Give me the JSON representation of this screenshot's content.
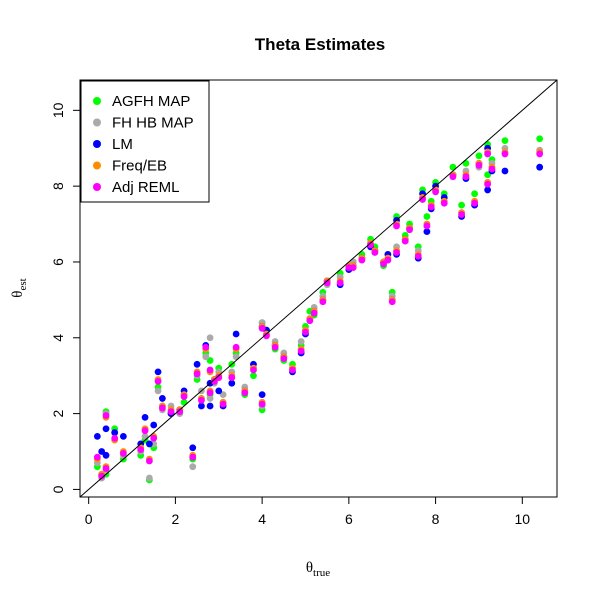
{
  "chart_data": {
    "type": "scatter",
    "title": "Theta Estimates",
    "xlabel": "θtrue",
    "xlabel_main": "θ",
    "xlabel_sub": "true",
    "ylabel": "θest",
    "ylabel_main": "θ",
    "ylabel_sub": "est",
    "xlim": [
      -0.2,
      10.8
    ],
    "ylim": [
      -0.2,
      10.8
    ],
    "xticks": [
      0,
      2,
      4,
      6,
      8,
      10
    ],
    "yticks": [
      0,
      2,
      4,
      6,
      8,
      10
    ],
    "reference_line": "y = x",
    "grid": false,
    "legend_position": "top-left",
    "x": [
      0.2,
      0.3,
      0.4,
      0.4,
      0.6,
      0.8,
      1.2,
      1.3,
      1.4,
      1.5,
      1.6,
      1.7,
      1.9,
      2.1,
      2.2,
      2.4,
      2.5,
      2.6,
      2.7,
      2.8,
      2.8,
      2.9,
      3.0,
      3.1,
      3.3,
      3.4,
      3.6,
      3.8,
      4.0,
      4.0,
      4.1,
      4.3,
      4.5,
      4.7,
      4.9,
      5.0,
      5.1,
      5.2,
      5.4,
      5.5,
      5.8,
      6.0,
      6.1,
      6.3,
      6.5,
      6.6,
      6.8,
      6.9,
      7.0,
      7.1,
      7.1,
      7.3,
      7.4,
      7.6,
      7.7,
      7.8,
      7.9,
      8.0,
      8.2,
      8.4,
      8.6,
      8.7,
      8.9,
      9.0,
      9.2,
      9.2,
      9.3,
      9.6,
      10.4
    ],
    "series": [
      {
        "name": "AGFH MAP",
        "color": "#00ff00",
        "values": [
          0.6,
          0.4,
          2.05,
          0.4,
          1.6,
          0.8,
          0.9,
          1.3,
          0.25,
          1.1,
          2.7,
          2.2,
          2.0,
          2.1,
          2.3,
          0.8,
          2.9,
          2.4,
          3.6,
          2.5,
          3.4,
          2.9,
          3.2,
          2.3,
          3.3,
          3.6,
          2.5,
          3.0,
          2.1,
          4.4,
          4.2,
          3.7,
          3.4,
          3.3,
          3.8,
          4.3,
          4.7,
          4.6,
          5.2,
          5.5,
          5.7,
          5.9,
          6.0,
          6.2,
          6.6,
          6.4,
          5.9,
          6.1,
          5.2,
          7.2,
          6.3,
          6.7,
          7.0,
          6.4,
          7.9,
          7.2,
          7.6,
          8.1,
          7.8,
          8.5,
          7.5,
          8.6,
          7.8,
          8.8,
          9.1,
          8.3,
          8.7,
          9.2,
          9.25
        ]
      },
      {
        "name": "FH HB MAP",
        "color": "#aaaaaa",
        "values": [
          0.7,
          0.3,
          2.0,
          0.5,
          1.5,
          0.9,
          1.0,
          1.4,
          0.3,
          1.2,
          2.6,
          2.1,
          2.2,
          2.0,
          2.5,
          0.6,
          3.0,
          2.6,
          3.5,
          2.4,
          4.0,
          2.8,
          3.1,
          2.5,
          3.1,
          3.5,
          2.7,
          3.2,
          2.2,
          4.4,
          4.1,
          3.9,
          3.6,
          3.2,
          3.9,
          4.2,
          4.5,
          4.8,
          5.1,
          5.4,
          5.6,
          5.9,
          6.0,
          6.1,
          6.5,
          6.3,
          6.0,
          6.2,
          5.1,
          7.0,
          6.4,
          6.6,
          6.9,
          6.3,
          7.7,
          7.0,
          7.5,
          7.9,
          7.6,
          8.3,
          7.3,
          8.4,
          7.6,
          8.5,
          8.9,
          8.1,
          8.6,
          9.0,
          8.95
        ]
      },
      {
        "name": "LM",
        "color": "#0000ff",
        "values": [
          1.4,
          1.0,
          1.6,
          0.9,
          1.5,
          1.4,
          1.2,
          1.9,
          1.2,
          1.7,
          3.1,
          2.4,
          2.0,
          2.1,
          2.6,
          1.1,
          3.3,
          2.2,
          3.8,
          2.8,
          2.2,
          2.9,
          2.6,
          2.2,
          2.8,
          4.1,
          2.6,
          3.3,
          2.5,
          4.3,
          4.2,
          3.8,
          3.5,
          3.1,
          3.6,
          4.1,
          4.5,
          4.7,
          5.0,
          5.5,
          5.4,
          5.8,
          5.9,
          6.1,
          6.4,
          6.3,
          6.0,
          6.2,
          5.0,
          7.1,
          6.2,
          6.6,
          6.9,
          6.1,
          7.8,
          6.8,
          7.4,
          8.0,
          7.7,
          8.3,
          7.2,
          8.2,
          7.5,
          8.6,
          9.0,
          7.9,
          8.4,
          8.4,
          8.5
        ]
      },
      {
        "name": "Freq/EB",
        "color": "#ff8c00",
        "values": [
          0.8,
          0.4,
          1.9,
          0.6,
          1.3,
          1.0,
          1.1,
          1.6,
          0.8,
          1.4,
          2.9,
          2.2,
          2.1,
          2.1,
          2.5,
          0.9,
          3.1,
          2.4,
          3.7,
          2.6,
          3.1,
          2.9,
          3.0,
          2.3,
          3.0,
          3.7,
          2.6,
          3.2,
          2.3,
          4.3,
          4.1,
          3.8,
          3.5,
          3.2,
          3.7,
          4.2,
          4.5,
          4.7,
          5.0,
          5.5,
          5.5,
          5.9,
          5.9,
          6.1,
          6.5,
          6.3,
          6.0,
          6.1,
          5.0,
          7.0,
          6.3,
          6.6,
          6.9,
          6.2,
          7.7,
          7.0,
          7.5,
          7.9,
          7.6,
          8.3,
          7.3,
          8.3,
          7.6,
          8.6,
          8.9,
          8.1,
          8.5,
          8.9,
          8.9
        ]
      },
      {
        "name": "Adj REML",
        "color": "#ff00ff",
        "values": [
          0.85,
          0.35,
          1.95,
          0.55,
          1.35,
          0.95,
          1.05,
          1.55,
          0.75,
          1.35,
          2.85,
          2.15,
          2.05,
          2.05,
          2.45,
          0.85,
          3.05,
          2.35,
          3.75,
          2.55,
          3.15,
          2.85,
          2.95,
          2.25,
          2.95,
          3.75,
          2.55,
          3.15,
          2.25,
          4.25,
          4.05,
          3.75,
          3.45,
          3.15,
          3.65,
          4.15,
          4.45,
          4.65,
          4.95,
          5.45,
          5.45,
          5.85,
          5.85,
          6.05,
          6.45,
          6.25,
          5.95,
          6.05,
          4.95,
          6.95,
          6.25,
          6.55,
          6.85,
          6.15,
          7.65,
          6.95,
          7.45,
          7.85,
          7.55,
          8.25,
          7.25,
          8.25,
          7.55,
          8.55,
          8.85,
          8.05,
          8.45,
          8.85,
          8.85
        ]
      }
    ]
  }
}
